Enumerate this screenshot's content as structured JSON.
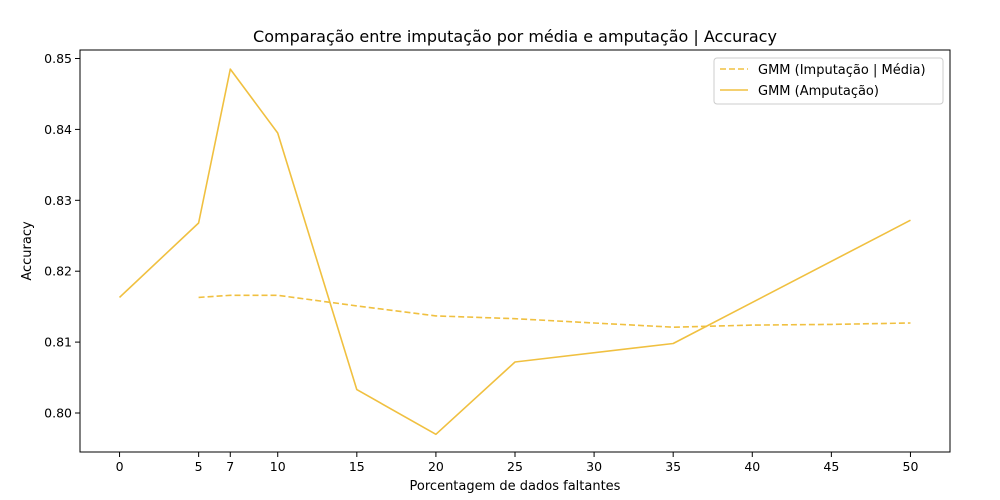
{
  "chart_data": {
    "type": "line",
    "title": "Comparação entre imputação por média e amputação | Accuracy",
    "xlabel": "Porcentagem de dados faltantes",
    "ylabel": "Accuracy",
    "xlim": [
      -2.5,
      52.5
    ],
    "ylim": [
      0.7945,
      0.8512
    ],
    "xticks": [
      0,
      5,
      7,
      10,
      15,
      20,
      25,
      30,
      35,
      40,
      45,
      50
    ],
    "yticks": [
      0.8,
      0.81,
      0.82,
      0.83,
      0.84,
      0.85
    ],
    "ytick_labels": [
      "0.80",
      "0.81",
      "0.82",
      "0.83",
      "0.84",
      "0.85"
    ],
    "grid": false,
    "legend_position": "top-right",
    "series": [
      {
        "name": "GMM (Imputação | Média)",
        "style": "dashed",
        "color": "#f0c040",
        "x": [
          5,
          7,
          10,
          15,
          20,
          25,
          30,
          35,
          40,
          45,
          50
        ],
        "y": [
          0.8163,
          0.8166,
          0.8166,
          0.8151,
          0.8137,
          0.8133,
          0.8127,
          0.8121,
          0.8124,
          0.8125,
          0.8127
        ]
      },
      {
        "name": "GMM (Amputação)",
        "style": "solid",
        "color": "#f0c040",
        "x": [
          0,
          5,
          7,
          10,
          15,
          20,
          25,
          35,
          50
        ],
        "y": [
          0.8163,
          0.8268,
          0.8485,
          0.8395,
          0.8033,
          0.797,
          0.8072,
          0.8098,
          0.8272
        ]
      }
    ]
  }
}
